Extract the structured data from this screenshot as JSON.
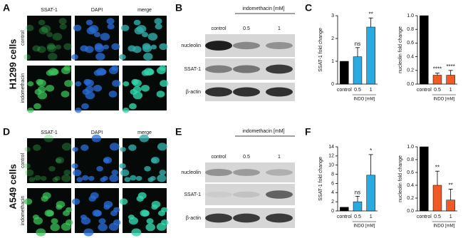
{
  "panel_letters": [
    "A",
    "B",
    "C",
    "D",
    "E",
    "F"
  ],
  "rows": [
    {
      "cell_line": "H1299 cells",
      "microscopy": {
        "columns": [
          "SSAT-1",
          "DAPI",
          "merge"
        ],
        "conditions": [
          "control",
          "indomethacin"
        ]
      },
      "blot": {
        "treatment": "indomethacin [mM]",
        "lanes": [
          "control",
          "0.5",
          "1"
        ],
        "proteins": [
          "nucleolin",
          "SSAT-1",
          "β-actin"
        ]
      }
    },
    {
      "cell_line": "A549 cells",
      "microscopy": {
        "columns": [
          "SSAT-1",
          "DAPI",
          "merge"
        ],
        "conditions": [
          "control",
          "indomethacin"
        ]
      },
      "blot": {
        "treatment": "indomethacin [mM]",
        "lanes": [
          "control",
          "0.5",
          "1"
        ],
        "proteins": [
          "nucleolin",
          "SSAT-1",
          "β-actin"
        ]
      }
    }
  ],
  "chart_data": [
    {
      "type": "bar",
      "ylabel": "SSAT-1 fold change",
      "categories": [
        "control",
        "0.5",
        "1"
      ],
      "group_label": "INDO [mM]",
      "values": [
        1,
        1.2,
        2.5
      ],
      "errors": [
        0,
        0.4,
        0.4
      ],
      "annotations": [
        null,
        "ns",
        "**"
      ],
      "colors": [
        "#000000",
        "#29abe2",
        "#29abe2"
      ],
      "ylim": [
        0,
        3
      ],
      "yticks": [
        0,
        1,
        2,
        3
      ]
    },
    {
      "type": "bar",
      "ylabel": "nucleolin fold change",
      "categories": [
        "control",
        "0.5",
        "1"
      ],
      "group_label": "INDO [mM]",
      "values": [
        1,
        0.13,
        0.13
      ],
      "errors": [
        0,
        0.03,
        0.07
      ],
      "annotations": [
        null,
        "****",
        "****"
      ],
      "colors": [
        "#000000",
        "#f15a24",
        "#f15a24"
      ],
      "ylim": [
        0,
        1
      ],
      "yticks": [
        {
          "value": 0,
          "label": "0.0"
        },
        {
          "value": 0.2,
          "label": "0.2"
        },
        {
          "value": 0.4,
          "label": "0.4"
        },
        {
          "value": 0.6,
          "label": "0.6"
        },
        {
          "value": 0.8,
          "label": "0.8"
        },
        {
          "value": 1,
          "label": "1.0"
        }
      ]
    },
    {
      "type": "bar",
      "ylabel": "SSAT-1 fold change",
      "categories": [
        "control",
        "0.5",
        "1"
      ],
      "group_label": "INDO [mM]",
      "values": [
        0.8,
        2,
        7.8
      ],
      "errors": [
        0,
        1.2,
        4.5
      ],
      "annotations": [
        null,
        "ns",
        "*"
      ],
      "colors": [
        "#000000",
        "#29abe2",
        "#29abe2"
      ],
      "ylim": [
        0,
        14
      ],
      "yticks": [
        0,
        2,
        4,
        6,
        8,
        10,
        12,
        14
      ]
    },
    {
      "type": "bar",
      "ylabel": "nucleolin fold change",
      "categories": [
        "control",
        "0.5",
        "1"
      ],
      "group_label": "INDO [mM]",
      "values": [
        1,
        0.4,
        0.17
      ],
      "errors": [
        0,
        0.22,
        0.17
      ],
      "annotations": [
        null,
        "**",
        "**"
      ],
      "colors": [
        "#000000",
        "#f15a24",
        "#f15a24"
      ],
      "ylim": [
        0,
        1
      ],
      "yticks": [
        {
          "value": 0,
          "label": "0.0"
        },
        {
          "value": 0.2,
          "label": "0.2"
        },
        {
          "value": 0.4,
          "label": "0.4"
        },
        {
          "value": 0.6,
          "label": "0.6"
        },
        {
          "value": 0.8,
          "label": "0.8"
        },
        {
          "value": 1,
          "label": "1.0"
        }
      ]
    }
  ]
}
